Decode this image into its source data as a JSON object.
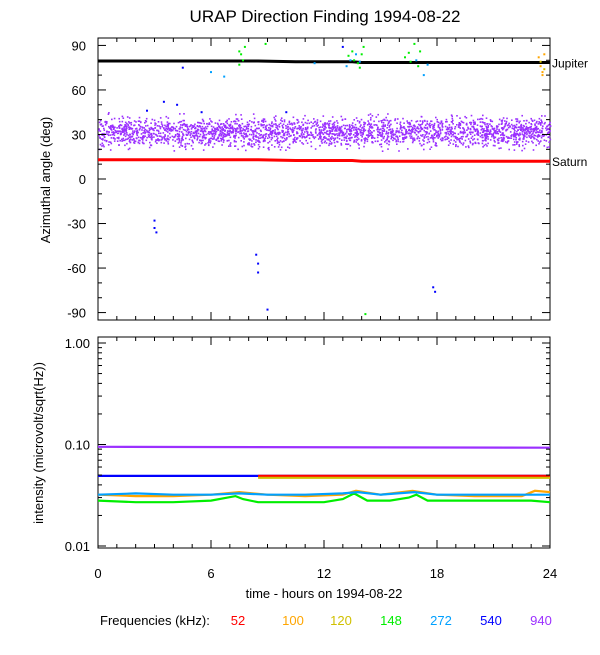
{
  "chart_data": [
    {
      "type": "scatter",
      "title": "URAP Direction Finding  1994-08-22",
      "ylabel": "Azimuthal angle (deg)",
      "xlim": [
        0,
        24
      ],
      "ylim": [
        -95,
        95
      ],
      "yticks": [
        90,
        60,
        30,
        0,
        -30,
        -60,
        -90
      ],
      "reference_lines": [
        {
          "name": "Jupiter",
          "color": "#000000",
          "y_start": 79.5,
          "y_end": 78.5
        },
        {
          "name": "Saturn",
          "color": "#ff0000",
          "y_start": 13,
          "y_end": 12
        }
      ],
      "series": [
        {
          "freq": "940",
          "color": "#9b30ff",
          "band": {
            "x": [
              0,
              24
            ],
            "y_center": 32,
            "spread": 7
          }
        },
        {
          "freq": "540",
          "color": "#0000ff",
          "points": [
            [
              3.0,
              -28
            ],
            [
              3.0,
              -33
            ],
            [
              3.1,
              -36
            ],
            [
              3.5,
              52
            ],
            [
              4.2,
              50
            ],
            [
              4.5,
              75
            ],
            [
              8.4,
              -51
            ],
            [
              8.5,
              -57
            ],
            [
              8.5,
              -63
            ],
            [
              9.0,
              -88
            ],
            [
              13.0,
              89
            ],
            [
              17.8,
              -73
            ],
            [
              17.9,
              -76
            ],
            [
              2.6,
              46
            ],
            [
              5.5,
              45
            ],
            [
              10.0,
              45
            ]
          ]
        },
        {
          "freq": "148",
          "color": "#00ee00",
          "points": [
            [
              7.5,
              86
            ],
            [
              7.6,
              84
            ],
            [
              7.7,
              80
            ],
            [
              7.8,
              89
            ],
            [
              7.5,
              77
            ],
            [
              13.3,
              83
            ],
            [
              13.5,
              86
            ],
            [
              13.6,
              80
            ],
            [
              13.8,
              78
            ],
            [
              14.0,
              84
            ],
            [
              14.1,
              89
            ],
            [
              13.9,
              75
            ],
            [
              16.3,
              82
            ],
            [
              16.5,
              85
            ],
            [
              16.6,
              79
            ],
            [
              16.8,
              91
            ],
            [
              17.0,
              76
            ],
            [
              17.1,
              86
            ],
            [
              8.9,
              91
            ],
            [
              14.2,
              -91
            ]
          ]
        },
        {
          "freq": "272",
          "color": "#00a0ff",
          "points": [
            [
              6.0,
              72
            ],
            [
              6.7,
              69
            ],
            [
              13.2,
              76
            ],
            [
              13.4,
              80
            ],
            [
              13.7,
              84
            ],
            [
              13.9,
              79
            ],
            [
              17.3,
              70
            ],
            [
              17.5,
              77
            ],
            [
              11.5,
              78
            ],
            [
              16.9,
              80
            ]
          ]
        },
        {
          "freq": "100",
          "color": "#ffa500",
          "points": [
            [
              23.4,
              82
            ],
            [
              23.5,
              76
            ],
            [
              23.6,
              72
            ],
            [
              23.6,
              70
            ],
            [
              23.7,
              84
            ]
          ]
        },
        {
          "freq": "120",
          "color": "#d0c000",
          "points": [
            [
              23.5,
              79
            ],
            [
              23.7,
              74
            ]
          ]
        }
      ]
    },
    {
      "type": "line",
      "ylabel": "intensity (microvolt/sqrt(Hz))",
      "xlabel": "time - hours on 1994-08-22",
      "xlim": [
        0,
        24
      ],
      "xticks": [
        0,
        6,
        12,
        18,
        24
      ],
      "yscale": "log",
      "ylim": [
        0.01,
        1.0
      ],
      "yticks": [
        "1.00",
        "0.10",
        "0.01"
      ],
      "series": [
        {
          "freq": "940",
          "color": "#9b30ff",
          "x": [
            0,
            24
          ],
          "y": [
            0.095,
            0.093
          ]
        },
        {
          "freq": "540",
          "color": "#0000ff",
          "x": [
            0,
            24
          ],
          "y": [
            0.049,
            0.049
          ]
        },
        {
          "freq": "52",
          "color": "#ff0000",
          "x": [
            8.5,
            24
          ],
          "y": [
            0.049,
            0.049
          ]
        },
        {
          "freq": "100",
          "color": "#ffa500",
          "x": [
            0,
            2,
            4,
            6,
            7.5,
            9,
            11,
            13,
            13.7,
            15,
            16.7,
            18,
            20,
            22.5,
            23.2,
            24
          ],
          "y": [
            0.032,
            0.031,
            0.031,
            0.032,
            0.034,
            0.032,
            0.031,
            0.032,
            0.035,
            0.032,
            0.035,
            0.032,
            0.031,
            0.031,
            0.035,
            0.034
          ]
        },
        {
          "freq": "120",
          "color": "#d0c000",
          "x": [
            8.5,
            24
          ],
          "y": [
            0.047,
            0.047
          ]
        },
        {
          "freq": "148",
          "color": "#00ee00",
          "x": [
            0,
            2,
            4,
            6,
            7.3,
            7.7,
            8.5,
            10,
            12,
            13.0,
            13.6,
            14.3,
            15.5,
            16.5,
            16.9,
            17.5,
            19,
            21,
            23,
            24
          ],
          "y": [
            0.028,
            0.027,
            0.027,
            0.028,
            0.031,
            0.029,
            0.027,
            0.027,
            0.027,
            0.029,
            0.033,
            0.028,
            0.028,
            0.03,
            0.032,
            0.028,
            0.028,
            0.028,
            0.028,
            0.027
          ]
        },
        {
          "freq": "272",
          "color": "#00a0ff",
          "x": [
            0,
            2,
            4,
            6,
            7.5,
            9,
            11,
            13,
            13.8,
            15,
            16.8,
            18,
            20,
            22,
            24
          ],
          "y": [
            0.032,
            0.033,
            0.032,
            0.032,
            0.033,
            0.032,
            0.032,
            0.033,
            0.034,
            0.032,
            0.034,
            0.032,
            0.032,
            0.032,
            0.032
          ]
        }
      ]
    }
  ],
  "legend": {
    "label": "Frequencies (kHz):",
    "items": [
      {
        "freq": "52",
        "color": "#ff0000"
      },
      {
        "freq": "100",
        "color": "#ffa500"
      },
      {
        "freq": "120",
        "color": "#d0c000"
      },
      {
        "freq": "148",
        "color": "#00ee00"
      },
      {
        "freq": "272",
        "color": "#00a0ff"
      },
      {
        "freq": "540",
        "color": "#0000ff"
      },
      {
        "freq": "940",
        "color": "#9b30ff"
      }
    ]
  }
}
